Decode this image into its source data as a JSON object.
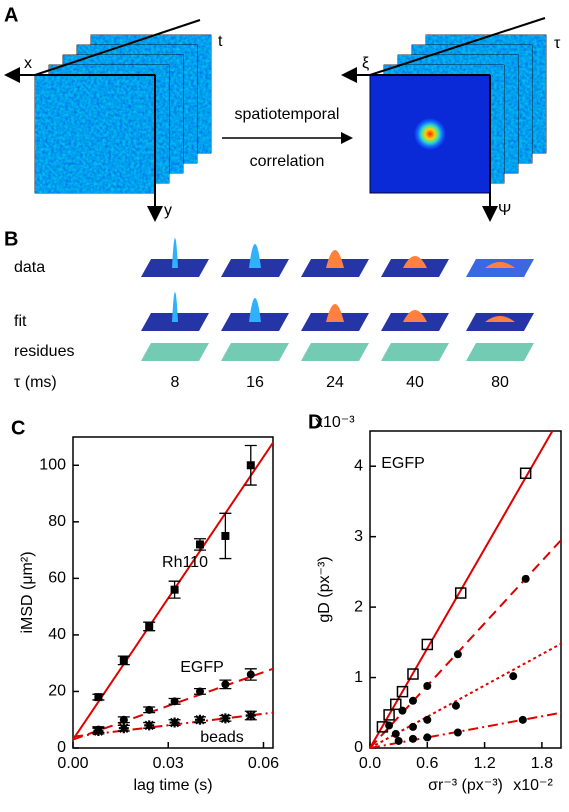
{
  "panel_a": {
    "label": "A",
    "left_axes": {
      "x": "x",
      "t": "t",
      "y": "y"
    },
    "arrow_top": "spatiotemporal",
    "arrow_bottom": "correlation",
    "right_axes": {
      "x": "ξ",
      "t": "τ",
      "y": "Ψ"
    }
  },
  "panel_b": {
    "label": "B",
    "rows": [
      "data",
      "fit",
      "residues"
    ],
    "tau_label": "τ (ms)",
    "tau_values": [
      8,
      16,
      24,
      40,
      80
    ]
  },
  "chart_data": [
    {
      "type": "scatter",
      "panel": "C",
      "xlabel": "lag time (s)",
      "ylabel": "iMSD (μm²)",
      "xlim": [
        0,
        0.063
      ],
      "ylim": [
        0,
        110
      ],
      "xticks": [
        {
          "value": 0,
          "label": "0.00"
        },
        0.03,
        0.06
      ],
      "yticks": [
        0,
        20,
        40,
        60,
        80,
        100
      ],
      "x": [
        0.008,
        0.016,
        0.024,
        0.032,
        0.04,
        0.048,
        0.056
      ],
      "series": [
        {
          "marker": "square",
          "color": "#000000",
          "values": [
            18,
            31,
            43,
            56,
            72,
            75,
            100
          ],
          "errors": [
            1,
            1.5,
            1.5,
            3,
            2,
            8,
            7
          ]
        },
        {
          "marker": "circle",
          "color": "#000000",
          "values": [
            6.5,
            10,
            13.5,
            16.5,
            20,
            22.5,
            26
          ],
          "errors": [
            1,
            1,
            1,
            1,
            1,
            1.5,
            2
          ]
        },
        {
          "marker": "star",
          "color": "#000000",
          "values": [
            6,
            7,
            8,
            9,
            10,
            10.5,
            11.5
          ],
          "errors": [
            1,
            1,
            1,
            1,
            1,
            1,
            1.5
          ]
        }
      ],
      "fits": [
        {
          "dash": "solid",
          "color": "#e00000",
          "x": [
            0,
            0.063
          ],
          "values": [
            3,
            108
          ]
        },
        {
          "dash": "dashed",
          "color": "#e00000",
          "x": [
            0,
            0.063
          ],
          "values": [
            3,
            28
          ]
        },
        {
          "dash": "dashdot",
          "color": "#e00000",
          "x": [
            0,
            0.063
          ],
          "values": [
            4,
            12.5
          ]
        }
      ],
      "annotations": [
        "Rh110",
        "EGFP",
        "beads"
      ]
    },
    {
      "type": "scatter",
      "panel": "D",
      "xlabel": "σr⁻³ (px⁻³)",
      "ylabel": "gD (px⁻³)",
      "x_multiplier": "x10⁻²",
      "y_multiplier": "x10⁻³",
      "xlim": [
        0,
        2.0
      ],
      "ylim": [
        0,
        4.5
      ],
      "xticks": [
        {
          "value": 0,
          "label": "0.0"
        },
        0.6,
        1.2,
        1.8
      ],
      "yticks": [
        0,
        1,
        2,
        3,
        4
      ],
      "series": [
        {
          "marker": "open-square",
          "color": "#000000",
          "x": [
            0.13,
            0.2,
            0.27,
            0.34,
            0.45,
            0.6,
            0.95,
            1.63
          ],
          "values": [
            0.3,
            0.47,
            0.62,
            0.8,
            1.05,
            1.47,
            2.2,
            3.9
          ]
        },
        {
          "marker": "circle",
          "color": "#000000",
          "x": [
            0.2,
            0.34,
            0.45,
            0.6,
            0.92,
            1.63
          ],
          "values": [
            0.32,
            0.53,
            0.67,
            0.88,
            1.33,
            2.4
          ]
        },
        {
          "marker": "circle",
          "color": "#000000",
          "x": [
            0.27,
            0.45,
            0.6,
            0.9,
            1.5
          ],
          "values": [
            0.2,
            0.3,
            0.4,
            0.6,
            1.02
          ]
        },
        {
          "marker": "circle",
          "color": "#000000",
          "x": [
            0.3,
            0.45,
            0.6,
            0.92,
            1.6
          ],
          "values": [
            0.1,
            0.13,
            0.15,
            0.22,
            0.4
          ]
        }
      ],
      "fits": [
        {
          "dash": "solid",
          "color": "#e00000",
          "x": [
            0,
            1.91
          ],
          "values": [
            0,
            4.5
          ]
        },
        {
          "dash": "dashed",
          "color": "#e00000",
          "x": [
            0,
            2.0
          ],
          "values": [
            0,
            2.95
          ]
        },
        {
          "dash": "dotted",
          "color": "#e00000",
          "x": [
            0,
            2.0
          ],
          "values": [
            0,
            1.48
          ]
        },
        {
          "dash": "dashdot",
          "color": "#e00000",
          "x": [
            0,
            2.0
          ],
          "values": [
            0,
            0.5
          ]
        }
      ],
      "annotations": [
        "EGFP"
      ]
    }
  ]
}
